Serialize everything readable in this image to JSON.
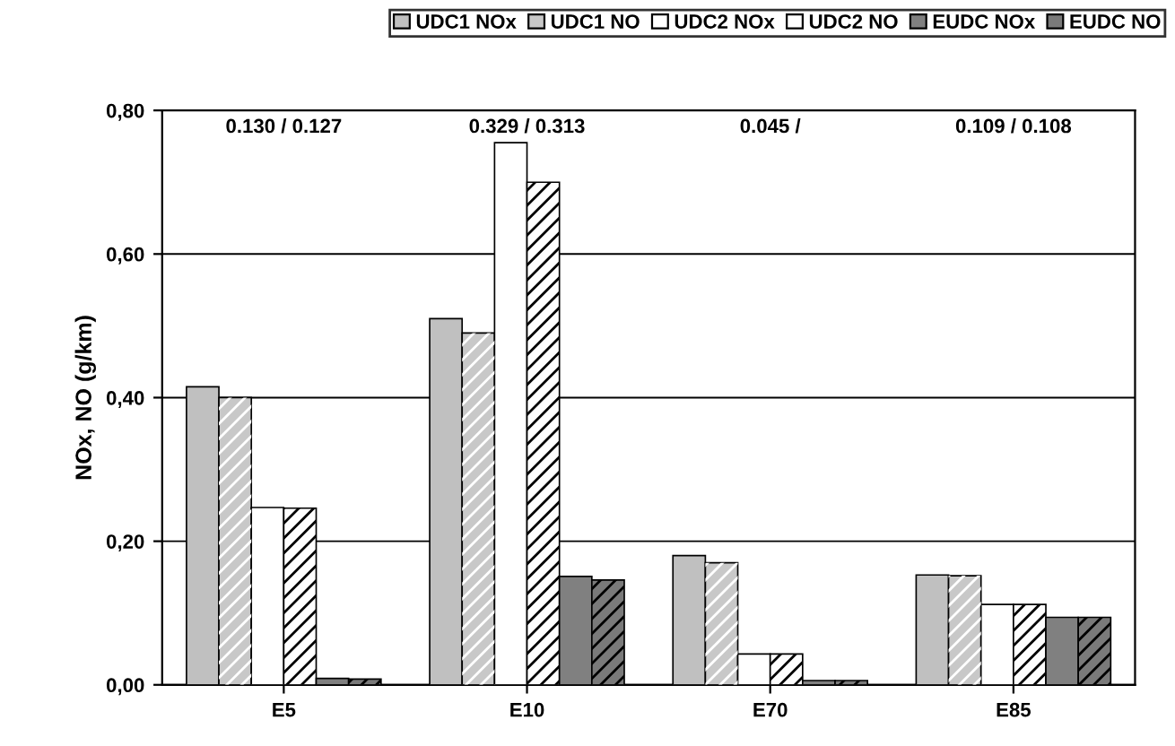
{
  "chart_data": {
    "type": "bar",
    "ylabel": "NOx, NO (g/km)",
    "categories": [
      "E5",
      "E10",
      "E70",
      "E85"
    ],
    "series": [
      {
        "name": "UDC1 NOx",
        "color": "#c0c0c0",
        "values": [
          0.415,
          0.51,
          0.18,
          0.153
        ]
      },
      {
        "name": "UDC1 NO",
        "color": "#c8c8c8",
        "values": [
          0.4,
          0.49,
          0.17,
          0.152
        ]
      },
      {
        "name": "UDC2 NOx",
        "color": "#ffffff",
        "values": [
          0.247,
          0.755,
          0.043,
          0.112
        ]
      },
      {
        "name": "UDC2 NO",
        "color": "#fefefe",
        "values": [
          0.246,
          0.7,
          0.043,
          0.112
        ]
      },
      {
        "name": "EUDC NOx",
        "color": "#808080",
        "values": [
          0.009,
          0.151,
          0.006,
          0.094
        ]
      },
      {
        "name": "EUDC NO",
        "color": "#7a7a7a",
        "values": [
          0.008,
          0.146,
          0.006,
          0.094
        ]
      }
    ],
    "ylim": [
      0,
      0.8
    ],
    "yticks": [
      {
        "value": 0,
        "label": "0,00"
      },
      {
        "value": 0.2,
        "label": "0,20"
      },
      {
        "value": 0.4,
        "label": "0,40"
      },
      {
        "value": 0.6,
        "label": "0,60"
      },
      {
        "value": 0.8,
        "label": "0,80"
      }
    ],
    "annotations": [
      "0.130 / 0.127",
      "0.329 / 0.313",
      "0.045 /",
      "0.109 / 0.108"
    ],
    "grid": "y",
    "legend": "top"
  }
}
